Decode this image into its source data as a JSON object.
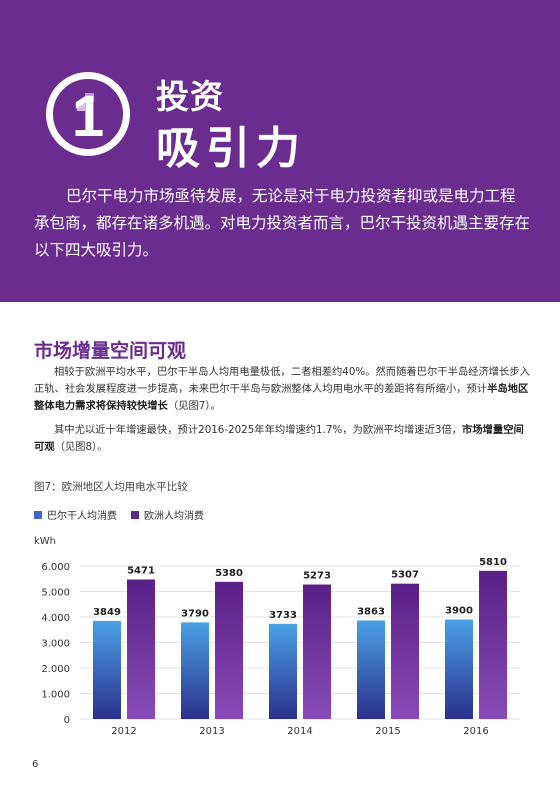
{
  "header": {
    "number": "1",
    "title_line1": "投资",
    "title_line2": "吸引力",
    "intro": "巴尔干电力市场亟待发展，无论是对于电力投资者抑或是电力工程承包商，都存在诸多机遇。对电力投资者而言，巴尔干投资机遇主要存在以下四大吸引力。"
  },
  "section": {
    "title": "市场增量空间可观",
    "p1_a": "相较于欧洲平均水平，巴尔干半岛人均用电量极低，二者相差约40%。然而随着巴尔干半岛经济增长步入正轨、社会发展程度进一步提高，未来巴尔干半岛与欧洲整体人均用电水平的差距将有所缩小，预计",
    "p1_bold": "半岛地区整体电力需求将保持较快增长",
    "p1_b": "（见图7）。",
    "p2_a": "其中尤以近十年增速最快，预计2016-2025年年均增速约1.7%，为欧洲平均增速近3倍，",
    "p2_bold": "市场增量空间可观",
    "p2_b": "（见图8）。"
  },
  "figure": {
    "caption": "图7：欧洲地区人均用电水平比较"
  },
  "chart_data": {
    "type": "bar",
    "categories": [
      "2012",
      "2013",
      "2014",
      "2015",
      "2016"
    ],
    "series": [
      {
        "name": "巴尔干人均消费",
        "values": [
          3849,
          3790,
          3733,
          3863,
          3900
        ],
        "color": "#3b6bc9"
      },
      {
        "name": "欧洲人均消费",
        "values": [
          5471,
          5380,
          5273,
          5307,
          5810
        ],
        "color": "#5a2a86"
      }
    ],
    "ylabel": "kWh",
    "ylim": [
      0,
      6000
    ],
    "yticks": [
      "0",
      "1.000",
      "2.000",
      "3.000",
      "4.000",
      "5.000",
      "6.000"
    ],
    "legend": "top-left",
    "grid": true
  },
  "footer": {
    "page_number": "6"
  }
}
